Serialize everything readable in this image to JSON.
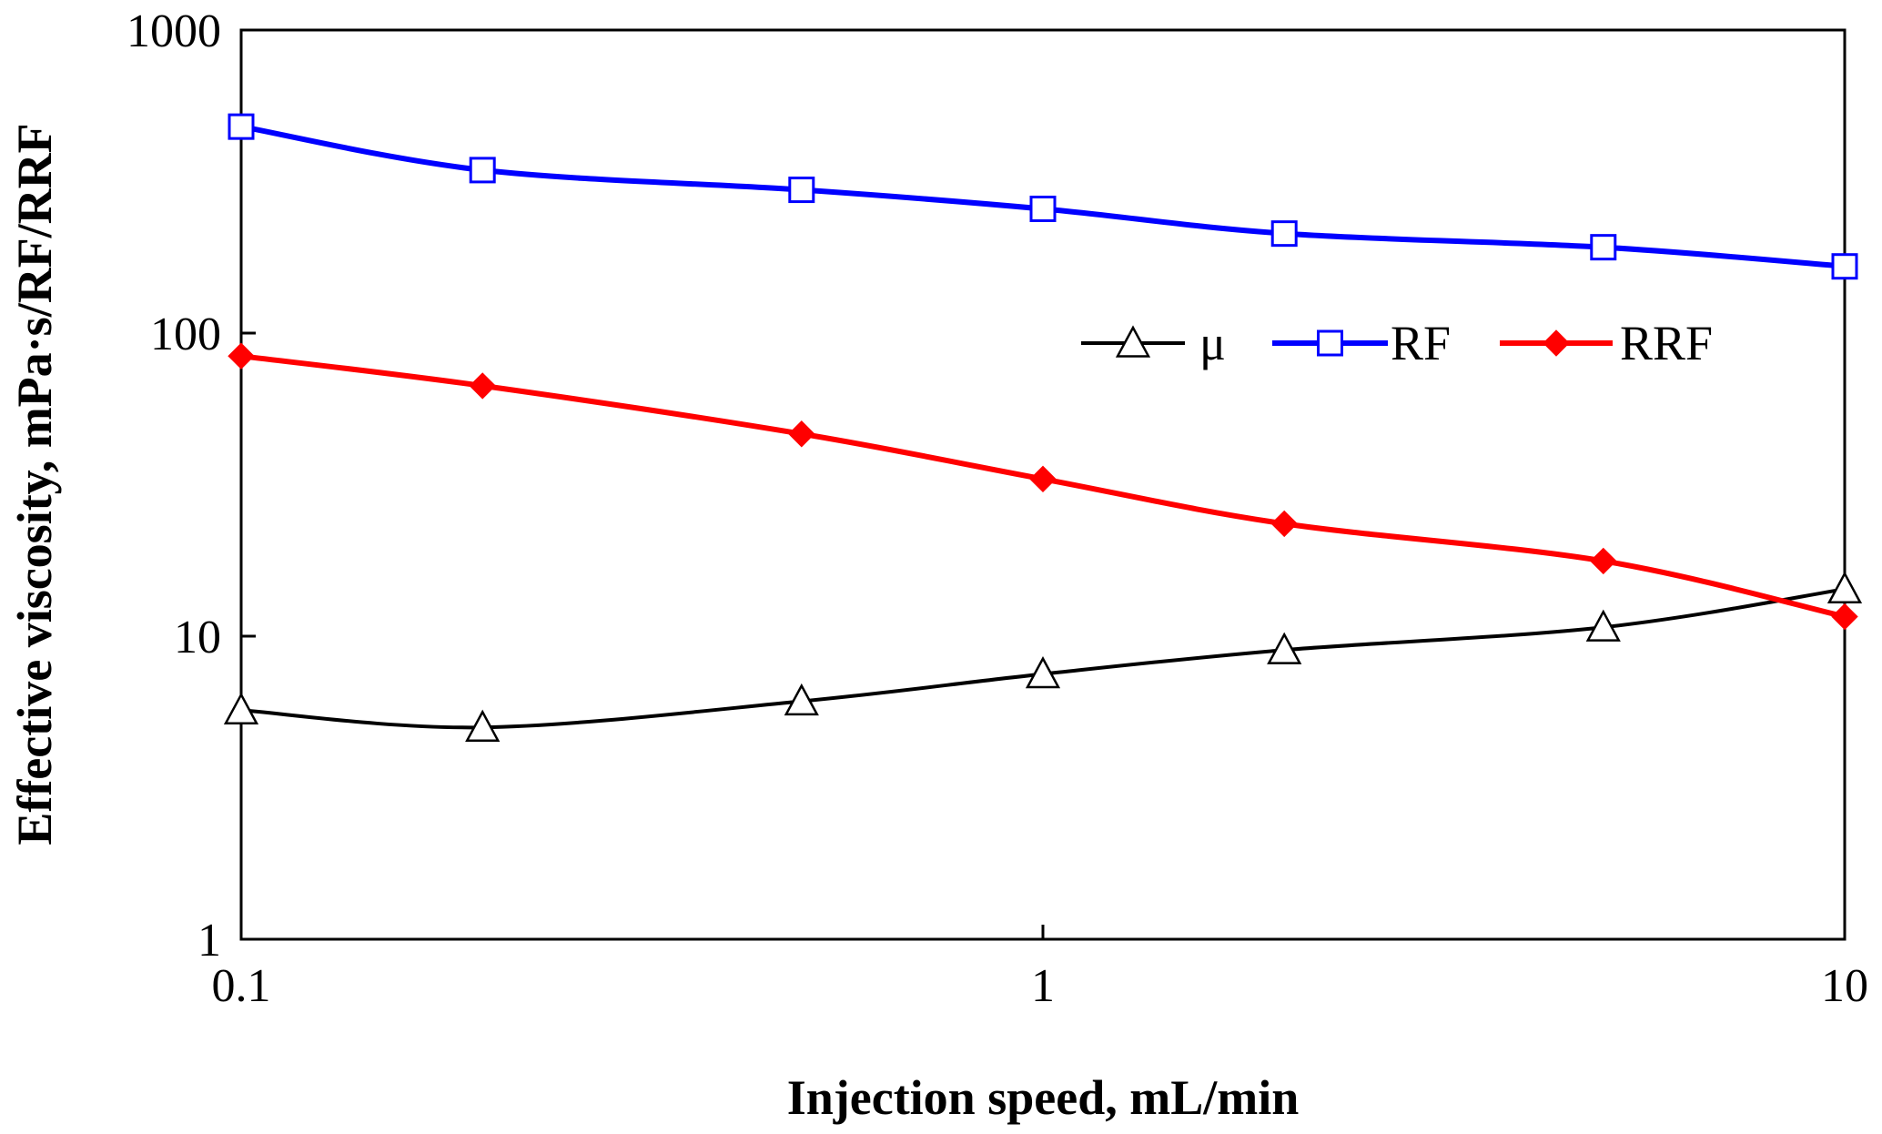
{
  "chart_data": {
    "type": "line",
    "x_scale": "log",
    "y_scale": "log",
    "xlabel": "Injection speed, mL/min",
    "ylabel": "Effective viscosity, mPa·s/RF/RRF",
    "xlim": [
      0.1,
      10
    ],
    "ylim": [
      1,
      1000
    ],
    "x_ticks": [
      {
        "value": 0.1,
        "label": "0.1"
      },
      {
        "value": 1,
        "label": "1"
      },
      {
        "value": 10,
        "label": "10"
      }
    ],
    "y_ticks": [
      {
        "value": 1,
        "label": "1"
      },
      {
        "value": 10,
        "label": "10"
      },
      {
        "value": 100,
        "label": "100"
      },
      {
        "value": 1000,
        "label": "1000"
      }
    ],
    "x": [
      0.1,
      0.2,
      0.5,
      1,
      2,
      5,
      10
    ],
    "series": [
      {
        "name": "μ",
        "color": "#000000",
        "marker": "triangle-open",
        "values": [
          5.7,
          5.0,
          6.1,
          7.5,
          9.0,
          10.7,
          14.3
        ]
      },
      {
        "name": "RF",
        "color": "#0000ff",
        "marker": "square-open",
        "values": [
          480,
          345,
          297,
          257,
          213,
          192,
          166
        ]
      },
      {
        "name": "RRF",
        "color": "#ff0000",
        "marker": "diamond-filled",
        "values": [
          84,
          67,
          46.5,
          33,
          23.5,
          17.7,
          11.6
        ]
      }
    ],
    "legend_position": "upper-right-inside",
    "grid": false
  }
}
